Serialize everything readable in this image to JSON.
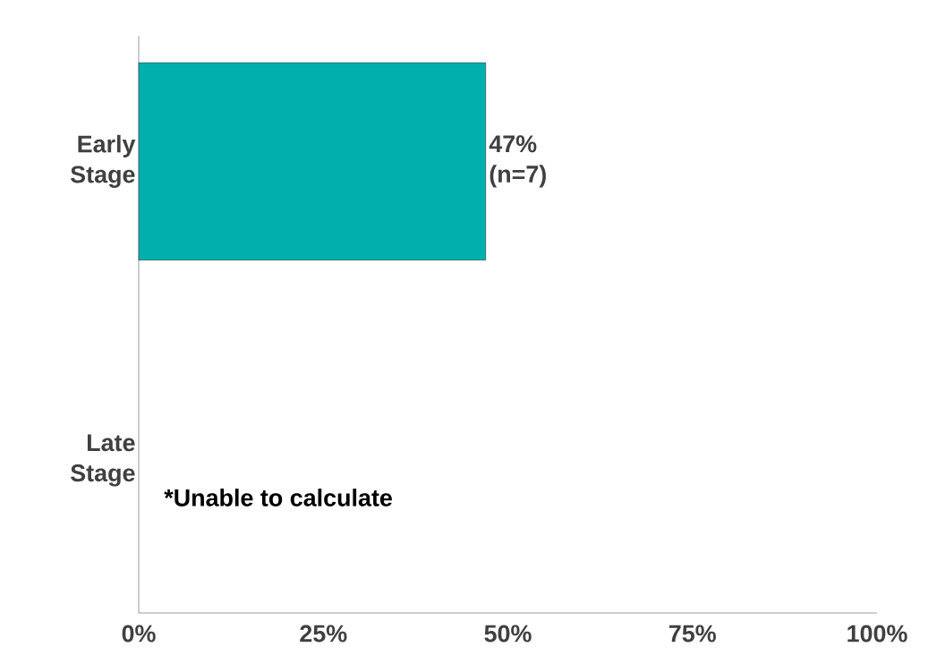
{
  "chart_data": {
    "type": "bar",
    "orientation": "horizontal",
    "categories": [
      "Early Stage",
      "Late Stage"
    ],
    "values": [
      47,
      null
    ],
    "value_labels": [
      "47% (n=7)",
      null
    ],
    "color": "#00b0ad",
    "xlim": [
      0,
      100
    ],
    "xticks": [
      {
        "value": 0,
        "label": "0%"
      },
      {
        "value": 25,
        "label": "25%"
      },
      {
        "value": 50,
        "label": "50%"
      },
      {
        "value": 75,
        "label": "75%"
      },
      {
        "value": 100,
        "label": "100%"
      }
    ],
    "annotations": [
      "*Unable to calculate"
    ]
  }
}
